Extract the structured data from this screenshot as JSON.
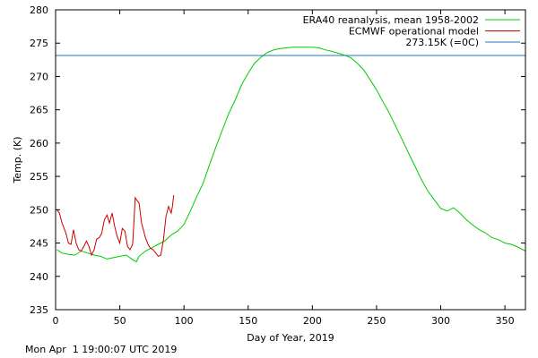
{
  "chart_data": {
    "type": "line",
    "title": "",
    "xlabel": "Day of Year, 2019",
    "ylabel": "Temp. (K)",
    "xlim": [
      0,
      366
    ],
    "ylim": [
      235,
      280
    ],
    "x_ticks": [
      0,
      50,
      100,
      150,
      200,
      250,
      300,
      350
    ],
    "y_ticks": [
      235,
      240,
      245,
      250,
      255,
      260,
      265,
      270,
      275,
      280
    ],
    "grid": false,
    "legend_position": "top-right",
    "series": [
      {
        "name": "ERA40 reanalysis, mean 1958-2002",
        "color": "#00cc00",
        "x": [
          1,
          5,
          10,
          15,
          20,
          25,
          30,
          35,
          40,
          45,
          50,
          55,
          60,
          63,
          65,
          70,
          75,
          80,
          85,
          90,
          95,
          100,
          105,
          110,
          115,
          120,
          125,
          130,
          135,
          140,
          145,
          150,
          155,
          160,
          165,
          170,
          175,
          180,
          185,
          190,
          195,
          200,
          205,
          210,
          215,
          220,
          225,
          230,
          235,
          240,
          245,
          250,
          255,
          260,
          265,
          270,
          275,
          280,
          285,
          290,
          295,
          300,
          305,
          310,
          315,
          320,
          325,
          330,
          335,
          340,
          345,
          350,
          355,
          360,
          366
        ],
        "y": [
          244,
          243.5,
          243.3,
          243.2,
          243.8,
          243.5,
          243.2,
          243,
          242.6,
          242.8,
          243,
          243.2,
          242.5,
          242.2,
          243,
          243.8,
          244.3,
          244.8,
          245.3,
          246.2,
          246.8,
          247.8,
          249.8,
          252,
          254,
          256.8,
          259.5,
          262,
          264.5,
          266.5,
          268.8,
          270.5,
          272,
          272.9,
          273.6,
          274,
          274.2,
          274.3,
          274.4,
          274.4,
          274.4,
          274.4,
          274.3,
          274,
          273.8,
          273.5,
          273.2,
          272.8,
          272,
          271,
          269.5,
          268,
          266.2,
          264.5,
          262.5,
          260.5,
          258.5,
          256.5,
          254.5,
          252.8,
          251.5,
          250.2,
          249.8,
          250.3,
          249.5,
          248.5,
          247.7,
          247,
          246.5,
          245.8,
          245.5,
          245,
          244.8,
          244.4,
          243.8
        ]
      },
      {
        "name": "ECMWF operational model",
        "color": "#cc0000",
        "x": [
          1,
          3,
          5,
          8,
          10,
          12,
          14,
          16,
          18,
          20,
          22,
          24,
          26,
          28,
          30,
          32,
          34,
          36,
          38,
          40,
          42,
          44,
          46,
          48,
          50,
          52,
          54,
          56,
          58,
          60,
          61,
          62,
          63,
          65,
          67,
          70,
          72,
          74,
          76,
          78,
          80,
          82,
          84,
          86,
          88,
          90,
          91,
          92
        ],
        "y": [
          250,
          249.5,
          248,
          246.5,
          245,
          244.8,
          247,
          245,
          244,
          243.8,
          244.5,
          245.3,
          244.5,
          243.2,
          244,
          245.6,
          245.8,
          246.5,
          248.5,
          249.2,
          248,
          249.5,
          247.5,
          246,
          245,
          247.2,
          246.8,
          244.5,
          244,
          244.8,
          248,
          251.8,
          251.5,
          251,
          248,
          245.8,
          244.8,
          244.2,
          244,
          243.5,
          243,
          243.2,
          245.5,
          249,
          250.5,
          249.5,
          250.5,
          252.2
        ]
      },
      {
        "name": "273.15K (=0C)",
        "color": "#1e78b4",
        "x": [
          0,
          366
        ],
        "y": [
          273.15,
          273.15
        ]
      }
    ]
  },
  "footer": {
    "timestamp": "Mon Apr  1 19:00:07 UTC 2019"
  }
}
